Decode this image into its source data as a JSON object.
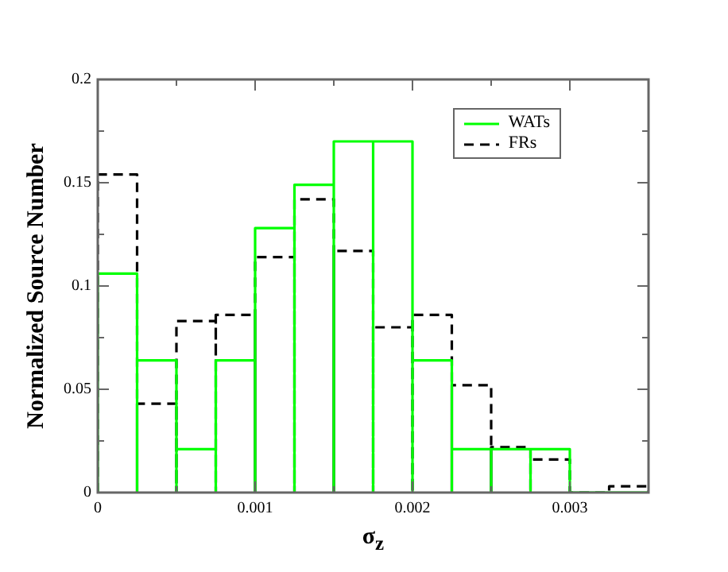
{
  "chart_data": {
    "type": "histogram",
    "xlabel": "σ$_{z}$",
    "ylabel": "Normalized Source Number",
    "bins": [
      0,
      0.00025,
      0.0005,
      0.00075,
      0.001,
      0.00125,
      0.0015,
      0.00175,
      0.002,
      0.00225,
      0.0025,
      0.00275,
      0.003,
      0.00325,
      0.0035
    ],
    "series": [
      {
        "name": "WATs",
        "color": "#00ff00",
        "line_style": "solid",
        "values": [
          0.106,
          0.064,
          0.021,
          0.064,
          0.128,
          0.149,
          0.17,
          0.17,
          0.064,
          0.021,
          0.021,
          0.021,
          0,
          0
        ]
      },
      {
        "name": "FRs",
        "color": "#000000",
        "line_style": "dashed",
        "values": [
          0.154,
          0.043,
          0.083,
          0.086,
          0.114,
          0.142,
          0.117,
          0.08,
          0.086,
          0.052,
          0.022,
          0.016,
          0,
          0.003
        ]
      }
    ],
    "xlim": [
      0,
      0.0035
    ],
    "xticks": [
      0,
      {
        "value": 0.0005,
        "label": null
      },
      0.001,
      {
        "value": 0.0015,
        "label": null
      },
      0.002,
      {
        "value": 0.0025,
        "label": null
      },
      0.003
    ],
    "ylim": [
      0,
      0.2
    ],
    "yticks": [
      0,
      {
        "value": 0.025,
        "label": null
      },
      0.05,
      {
        "value": 0.075,
        "label": null
      },
      0.1,
      {
        "value": 0.125,
        "label": null
      },
      0.15,
      {
        "value": 0.175,
        "label": null
      },
      0.2
    ],
    "legend": "top right"
  }
}
